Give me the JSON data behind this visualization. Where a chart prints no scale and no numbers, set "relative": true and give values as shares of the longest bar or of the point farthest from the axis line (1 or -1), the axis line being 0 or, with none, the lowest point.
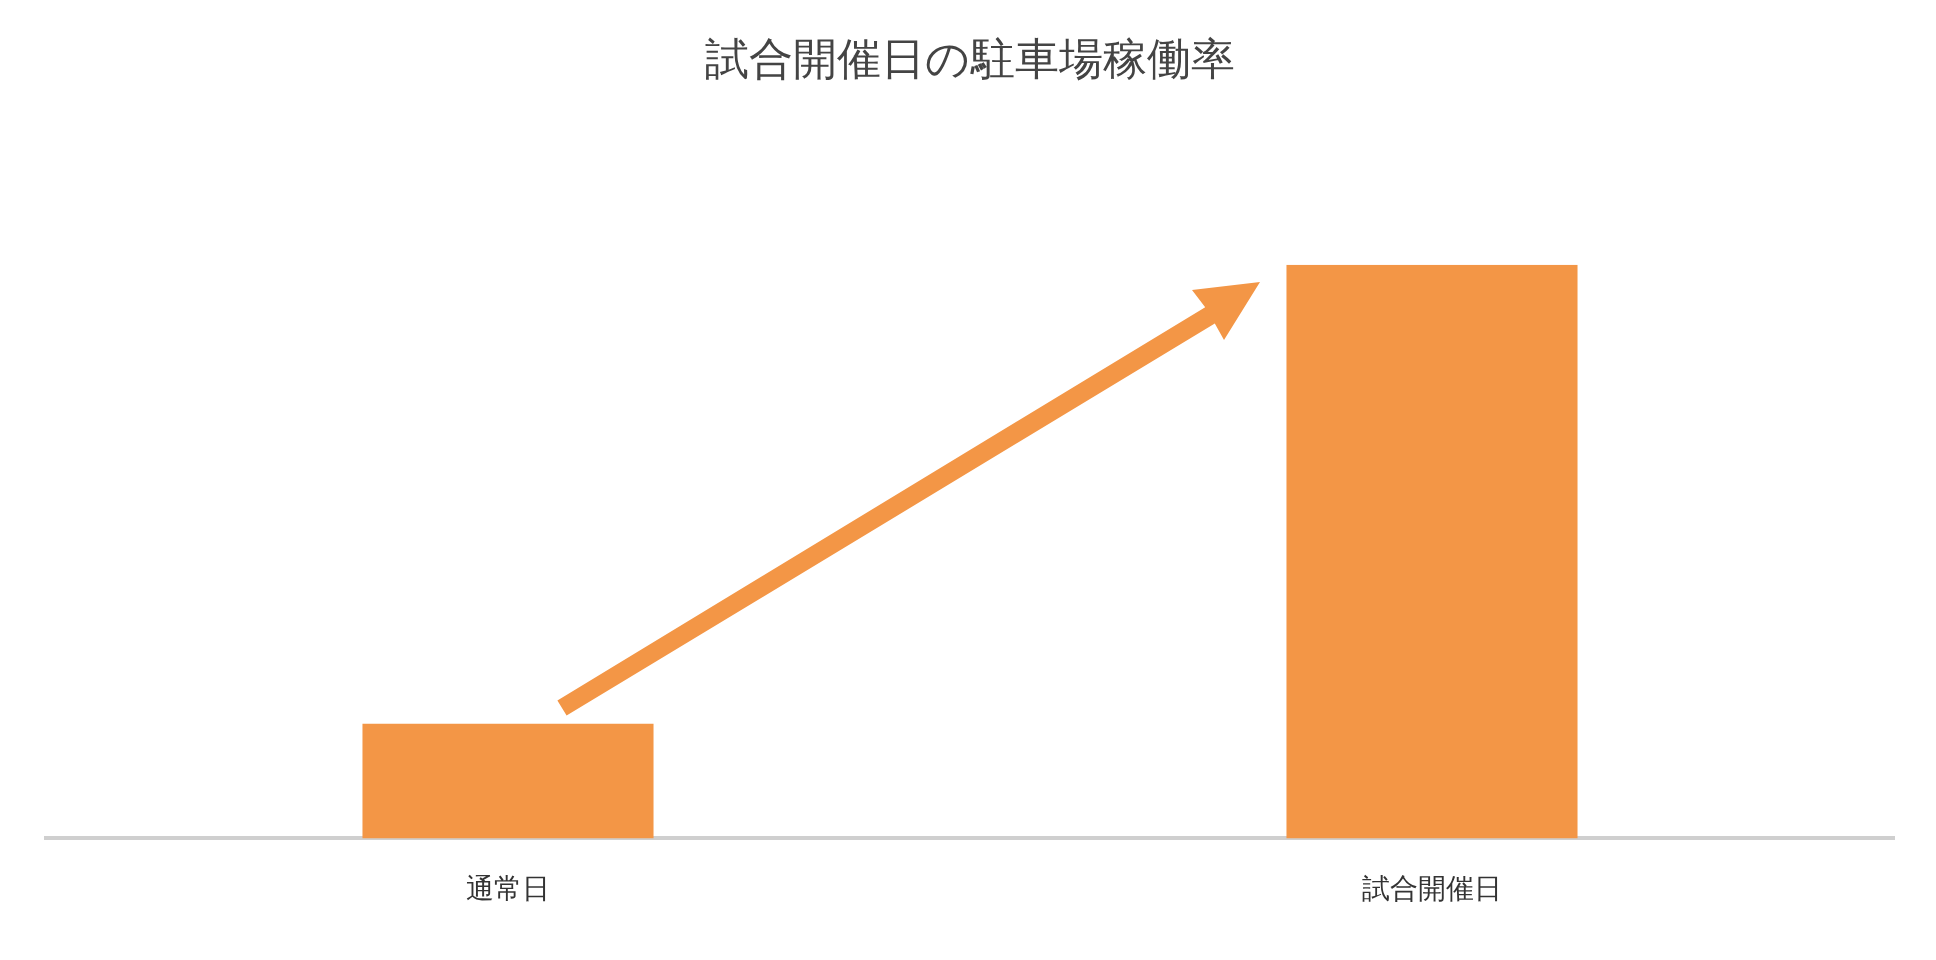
{
  "chart_data": {
    "type": "bar",
    "title": "試合開催日の駐車場稼働率",
    "categories": [
      "通常日",
      "試合開催日"
    ],
    "values": [
      0.2,
      1
    ],
    "color": "#f39646",
    "relative": true,
    "grid": false,
    "legend": false
  }
}
